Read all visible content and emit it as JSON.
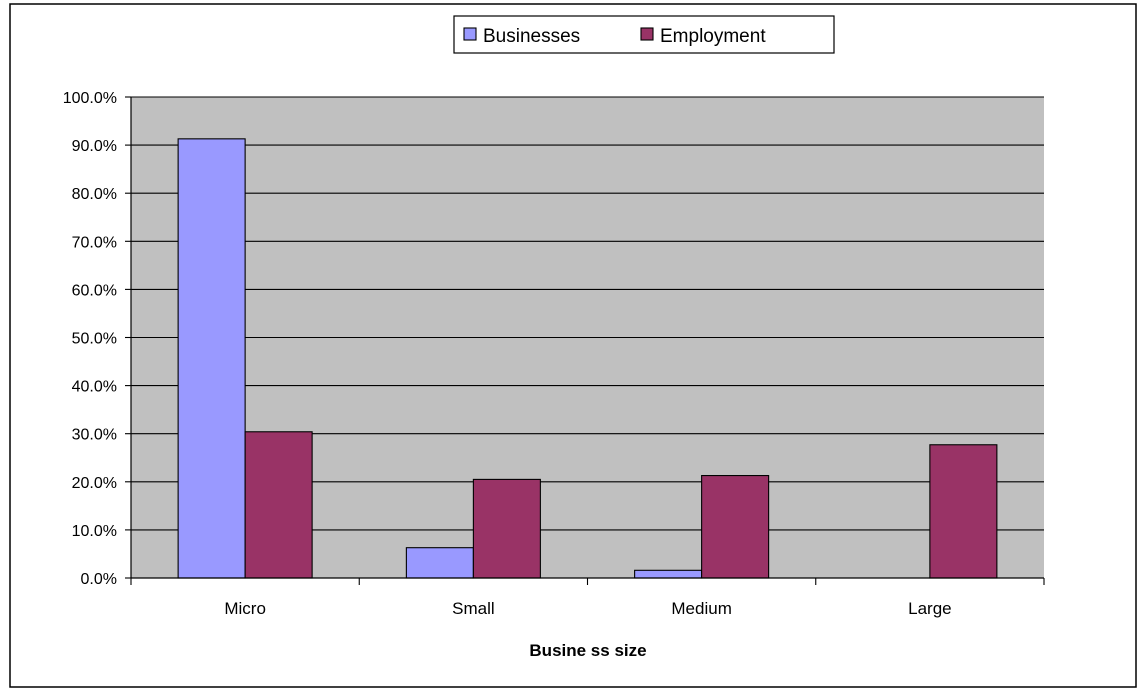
{
  "chart_data": {
    "type": "bar",
    "title": "",
    "xlabel": "Busine ss size",
    "ylabel": "",
    "categories": [
      "Micro",
      "Small",
      "Medium",
      "Large"
    ],
    "series": [
      {
        "name": "Businesses",
        "values": [
          91.3,
          6.3,
          1.6,
          0.0
        ],
        "color": "#9999ff"
      },
      {
        "name": "Employment",
        "values": [
          30.4,
          20.5,
          21.3,
          27.7
        ],
        "color": "#993366"
      }
    ],
    "ylim": [
      0,
      100
    ],
    "yticks": [
      0,
      10,
      20,
      30,
      40,
      50,
      60,
      70,
      80,
      90,
      100
    ],
    "ytick_labels": [
      "0.0%",
      "10.0%",
      "20.0%",
      "30.0%",
      "40.0%",
      "50.0%",
      "60.0%",
      "70.0%",
      "80.0%",
      "90.0%",
      "100.0%"
    ],
    "grid": true,
    "legend_position": "top",
    "plot_background": "#c0c0c0"
  }
}
